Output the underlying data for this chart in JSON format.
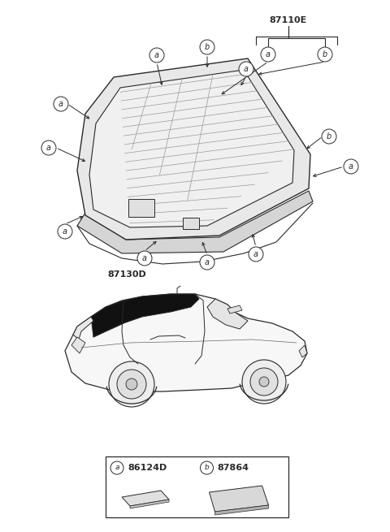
{
  "bg_color": "#ffffff",
  "line_color": "#2a2a2a",
  "title": "87110E",
  "part1_label": "87130D",
  "part_a_code": "86124D",
  "part_b_code": "87864",
  "figsize": [
    4.8,
    6.55
  ],
  "dpi": 100
}
